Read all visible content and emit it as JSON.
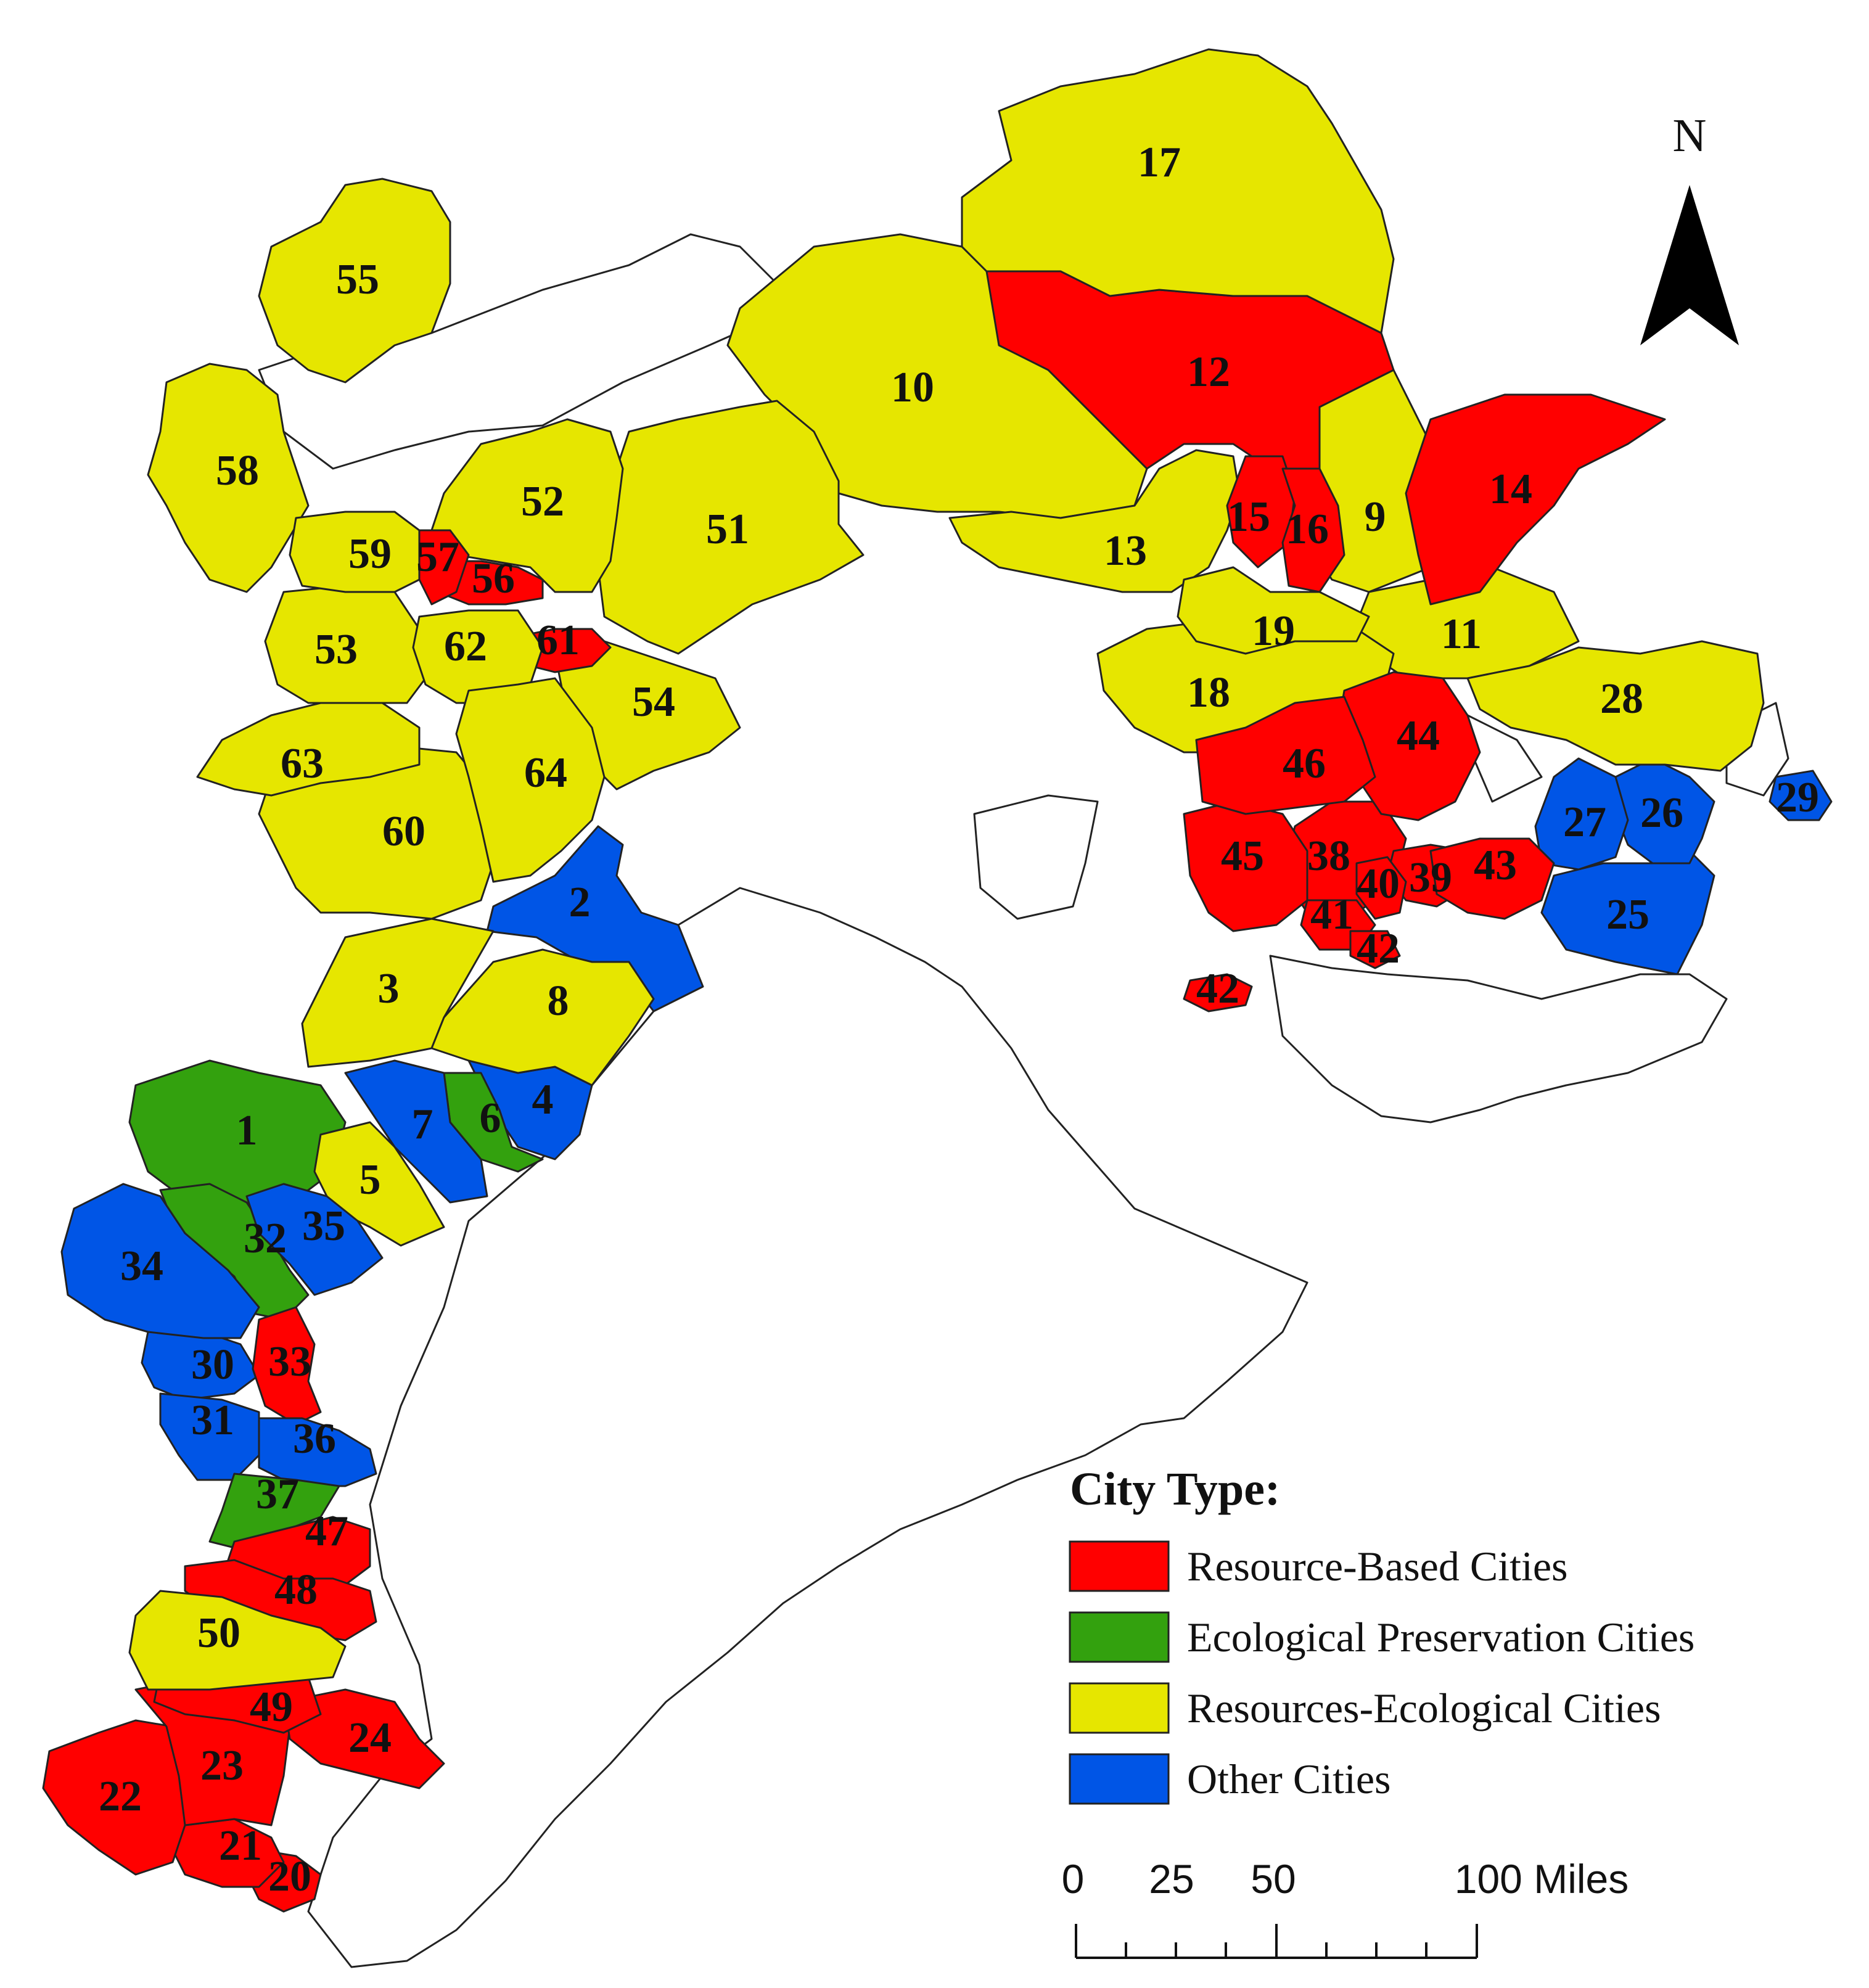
{
  "colors": {
    "resource": "#ff0000",
    "ecological": "#33a10e",
    "resource_ecological": "#e6e600",
    "other": "#0055e6",
    "none": "#ffffff"
  },
  "north_label": "N",
  "legend": {
    "title": "City Type:",
    "items": [
      {
        "label": "Resource-Based Cities",
        "type": "resource"
      },
      {
        "label": "Ecological Preservation Cities",
        "type": "ecological"
      },
      {
        "label": "Resources-Ecological Cities",
        "type": "resource_ecological"
      },
      {
        "label": "Other Cities",
        "type": "other"
      }
    ]
  },
  "scale_bar": {
    "labels": [
      "0",
      "25",
      "50",
      "100 Miles"
    ]
  },
  "regions": [
    {
      "id": "1",
      "type": "ecological"
    },
    {
      "id": "2",
      "type": "other"
    },
    {
      "id": "3",
      "type": "resource_ecological"
    },
    {
      "id": "4",
      "type": "other"
    },
    {
      "id": "5",
      "type": "resource_ecological"
    },
    {
      "id": "6",
      "type": "ecological"
    },
    {
      "id": "7",
      "type": "other"
    },
    {
      "id": "8",
      "type": "resource_ecological"
    },
    {
      "id": "9",
      "type": "resource_ecological"
    },
    {
      "id": "10",
      "type": "resource_ecological"
    },
    {
      "id": "11",
      "type": "resource_ecological"
    },
    {
      "id": "12",
      "type": "resource"
    },
    {
      "id": "13",
      "type": "resource_ecological"
    },
    {
      "id": "14",
      "type": "resource"
    },
    {
      "id": "15",
      "type": "resource"
    },
    {
      "id": "16",
      "type": "resource"
    },
    {
      "id": "17",
      "type": "resource_ecological"
    },
    {
      "id": "18",
      "type": "resource_ecological"
    },
    {
      "id": "19",
      "type": "resource_ecological"
    },
    {
      "id": "20",
      "type": "resource"
    },
    {
      "id": "21",
      "type": "resource"
    },
    {
      "id": "22",
      "type": "resource"
    },
    {
      "id": "23",
      "type": "resource"
    },
    {
      "id": "24",
      "type": "resource"
    },
    {
      "id": "25",
      "type": "other"
    },
    {
      "id": "26",
      "type": "other"
    },
    {
      "id": "27",
      "type": "other"
    },
    {
      "id": "28",
      "type": "resource_ecological"
    },
    {
      "id": "29",
      "type": "other"
    },
    {
      "id": "30",
      "type": "other"
    },
    {
      "id": "31",
      "type": "other"
    },
    {
      "id": "32",
      "type": "ecological"
    },
    {
      "id": "33",
      "type": "resource"
    },
    {
      "id": "34",
      "type": "other"
    },
    {
      "id": "35",
      "type": "other"
    },
    {
      "id": "36",
      "type": "other"
    },
    {
      "id": "37",
      "type": "ecological"
    },
    {
      "id": "38",
      "type": "resource"
    },
    {
      "id": "39",
      "type": "resource"
    },
    {
      "id": "40",
      "type": "resource"
    },
    {
      "id": "41",
      "type": "resource"
    },
    {
      "id": "42",
      "type": "resource"
    },
    {
      "id": "43",
      "type": "resource"
    },
    {
      "id": "44",
      "type": "resource"
    },
    {
      "id": "45",
      "type": "resource"
    },
    {
      "id": "46",
      "type": "resource"
    },
    {
      "id": "47",
      "type": "resource"
    },
    {
      "id": "48",
      "type": "resource"
    },
    {
      "id": "49",
      "type": "resource"
    },
    {
      "id": "50",
      "type": "resource_ecological"
    },
    {
      "id": "51",
      "type": "resource_ecological"
    },
    {
      "id": "52",
      "type": "resource_ecological"
    },
    {
      "id": "53",
      "type": "resource_ecological"
    },
    {
      "id": "54",
      "type": "resource_ecological"
    },
    {
      "id": "55",
      "type": "resource_ecological"
    },
    {
      "id": "56",
      "type": "resource"
    },
    {
      "id": "57",
      "type": "resource"
    },
    {
      "id": "58",
      "type": "resource_ecological"
    },
    {
      "id": "59",
      "type": "resource_ecological"
    },
    {
      "id": "60",
      "type": "resource_ecological"
    },
    {
      "id": "61",
      "type": "resource"
    },
    {
      "id": "62",
      "type": "resource_ecological"
    },
    {
      "id": "63",
      "type": "resource_ecological"
    },
    {
      "id": "64",
      "type": "resource_ecological"
    }
  ]
}
